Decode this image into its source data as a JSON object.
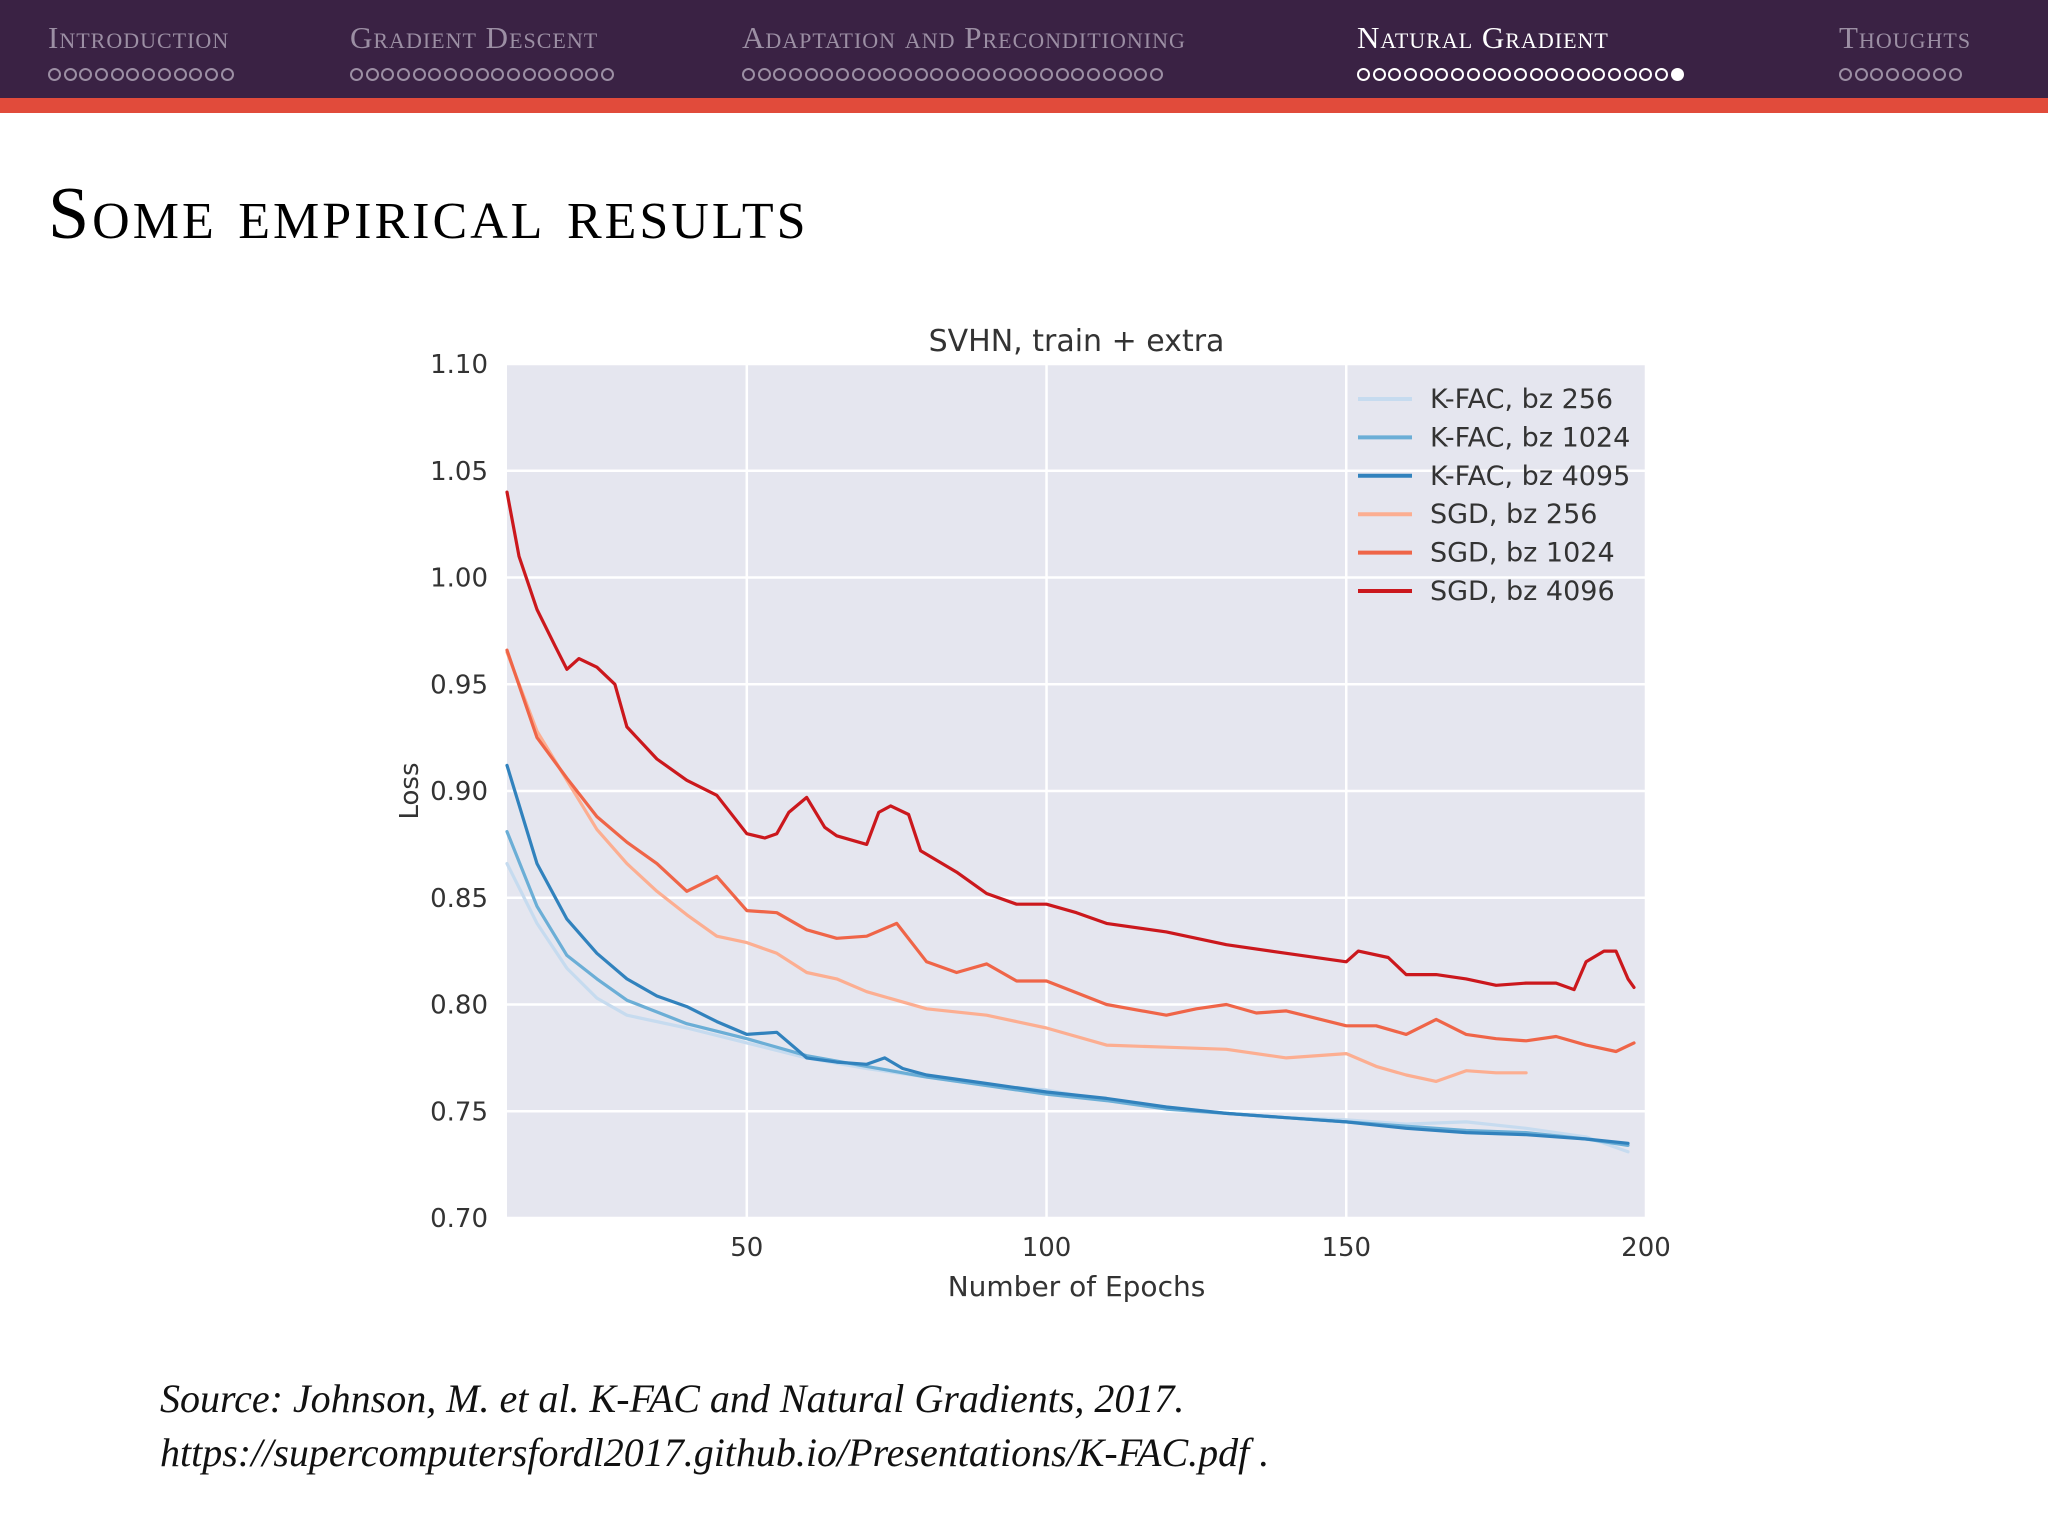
{
  "nav": {
    "sections": [
      {
        "title": "Introduction",
        "dots": 12,
        "visited": 0,
        "current": -1,
        "active": false
      },
      {
        "title": "Gradient Descent",
        "dots": 17,
        "visited": 0,
        "current": -1,
        "active": false
      },
      {
        "title": "Adaptation and Preconditioning",
        "dots": 27,
        "visited": 0,
        "current": -1,
        "active": false
      },
      {
        "title": "Natural Gradient",
        "dots": 21,
        "visited": 21,
        "current": 20,
        "active": true
      },
      {
        "title": "Thoughts",
        "dots": 8,
        "visited": 0,
        "current": -1,
        "active": false
      }
    ],
    "colors": {
      "bar": "#3a2244",
      "underline": "#e14b3b",
      "inactive": "#9c8fa4",
      "active": "#ffffff"
    }
  },
  "slide": {
    "title": "Some empirical results"
  },
  "source": {
    "line1": "Source: Johnson, M. et al. K-FAC and Natural Gradients, 2017.",
    "line2": "https://supercomputersfordl2017.github.io/Presentations/K-FAC.pdf ."
  },
  "chart_data": {
    "type": "line",
    "title": "SVHN, train + extra",
    "xlabel": "Number of Epochs",
    "ylabel": "Loss",
    "xlim": [
      10,
      200
    ],
    "ylim": [
      0.7,
      1.1
    ],
    "xticks": [
      50,
      100,
      150,
      200
    ],
    "yticks": [
      0.7,
      0.75,
      0.8,
      0.85,
      0.9,
      0.95,
      1.0,
      1.05,
      1.1
    ],
    "ytick_labels": [
      "0.70",
      "0.75",
      "0.80",
      "0.85",
      "0.90",
      "0.95",
      "1.00",
      "1.05",
      "1.10"
    ],
    "grid": true,
    "legend_position": "top-right",
    "plot_background": "#e5e6ef",
    "series": [
      {
        "name": "K-FAC, bz 256",
        "color": "#c6dbef",
        "x": [
          10,
          15,
          20,
          25,
          30,
          40,
          50,
          60,
          70,
          80,
          90,
          100,
          110,
          120,
          130,
          140,
          150,
          160,
          170,
          180,
          190,
          197
        ],
        "y": [
          0.866,
          0.838,
          0.817,
          0.803,
          0.795,
          0.789,
          0.782,
          0.775,
          0.77,
          0.766,
          0.762,
          0.76,
          0.755,
          0.752,
          0.749,
          0.747,
          0.746,
          0.744,
          0.745,
          0.742,
          0.738,
          0.731
        ]
      },
      {
        "name": "K-FAC, bz 1024",
        "color": "#6baed6",
        "x": [
          10,
          15,
          20,
          25,
          30,
          40,
          50,
          60,
          70,
          80,
          90,
          100,
          110,
          120,
          130,
          140,
          150,
          160,
          170,
          180,
          190,
          197
        ],
        "y": [
          0.881,
          0.846,
          0.823,
          0.812,
          0.802,
          0.791,
          0.784,
          0.776,
          0.771,
          0.766,
          0.762,
          0.758,
          0.755,
          0.751,
          0.749,
          0.747,
          0.745,
          0.743,
          0.741,
          0.74,
          0.737,
          0.734
        ]
      },
      {
        "name": "K-FAC, bz 4095",
        "color": "#3182bd",
        "x": [
          10,
          15,
          20,
          25,
          30,
          35,
          40,
          45,
          50,
          55,
          60,
          65,
          70,
          73,
          76,
          80,
          90,
          100,
          110,
          120,
          130,
          140,
          150,
          160,
          170,
          180,
          190,
          197
        ],
        "y": [
          0.912,
          0.866,
          0.84,
          0.824,
          0.812,
          0.804,
          0.799,
          0.792,
          0.786,
          0.787,
          0.775,
          0.773,
          0.772,
          0.775,
          0.77,
          0.767,
          0.763,
          0.759,
          0.756,
          0.752,
          0.749,
          0.747,
          0.745,
          0.742,
          0.74,
          0.739,
          0.737,
          0.735
        ]
      },
      {
        "name": "SGD, bz 256",
        "color": "#fcae91",
        "x": [
          10,
          15,
          20,
          25,
          30,
          35,
          40,
          45,
          50,
          55,
          60,
          65,
          70,
          80,
          90,
          100,
          110,
          120,
          130,
          140,
          150,
          155,
          160,
          165,
          170,
          175,
          180
        ],
        "y": [
          0.965,
          0.928,
          0.905,
          0.882,
          0.866,
          0.853,
          0.842,
          0.832,
          0.829,
          0.824,
          0.815,
          0.812,
          0.806,
          0.798,
          0.795,
          0.789,
          0.781,
          0.78,
          0.779,
          0.775,
          0.777,
          0.771,
          0.767,
          0.764,
          0.769,
          0.768,
          0.768
        ]
      },
      {
        "name": "SGD, bz 1024",
        "color": "#ef6548",
        "x": [
          10,
          15,
          20,
          25,
          30,
          35,
          40,
          45,
          50,
          55,
          60,
          65,
          70,
          75,
          80,
          85,
          90,
          95,
          100,
          110,
          120,
          125,
          130,
          135,
          140,
          150,
          155,
          160,
          165,
          170,
          175,
          180,
          185,
          190,
          195,
          198
        ],
        "y": [
          0.966,
          0.925,
          0.906,
          0.888,
          0.876,
          0.866,
          0.853,
          0.86,
          0.844,
          0.843,
          0.835,
          0.831,
          0.832,
          0.838,
          0.82,
          0.815,
          0.819,
          0.811,
          0.811,
          0.8,
          0.795,
          0.798,
          0.8,
          0.796,
          0.797,
          0.79,
          0.79,
          0.786,
          0.793,
          0.786,
          0.784,
          0.783,
          0.785,
          0.781,
          0.778,
          0.782
        ]
      },
      {
        "name": "SGD, bz 4096",
        "color": "#cb181d",
        "x": [
          10,
          12,
          15,
          18,
          20,
          22,
          25,
          28,
          30,
          35,
          40,
          45,
          50,
          53,
          55,
          57,
          60,
          63,
          65,
          70,
          72,
          74,
          77,
          79,
          85,
          90,
          95,
          100,
          105,
          110,
          120,
          130,
          140,
          150,
          152,
          157,
          160,
          165,
          170,
          175,
          180,
          185,
          188,
          190,
          193,
          195,
          197,
          198
        ],
        "y": [
          1.04,
          1.01,
          0.985,
          0.968,
          0.957,
          0.962,
          0.958,
          0.95,
          0.93,
          0.915,
          0.905,
          0.898,
          0.88,
          0.878,
          0.88,
          0.89,
          0.897,
          0.883,
          0.879,
          0.875,
          0.89,
          0.893,
          0.889,
          0.872,
          0.862,
          0.852,
          0.847,
          0.847,
          0.843,
          0.838,
          0.834,
          0.828,
          0.824,
          0.82,
          0.825,
          0.822,
          0.814,
          0.814,
          0.812,
          0.809,
          0.81,
          0.81,
          0.807,
          0.82,
          0.825,
          0.825,
          0.812,
          0.808
        ]
      }
    ]
  }
}
